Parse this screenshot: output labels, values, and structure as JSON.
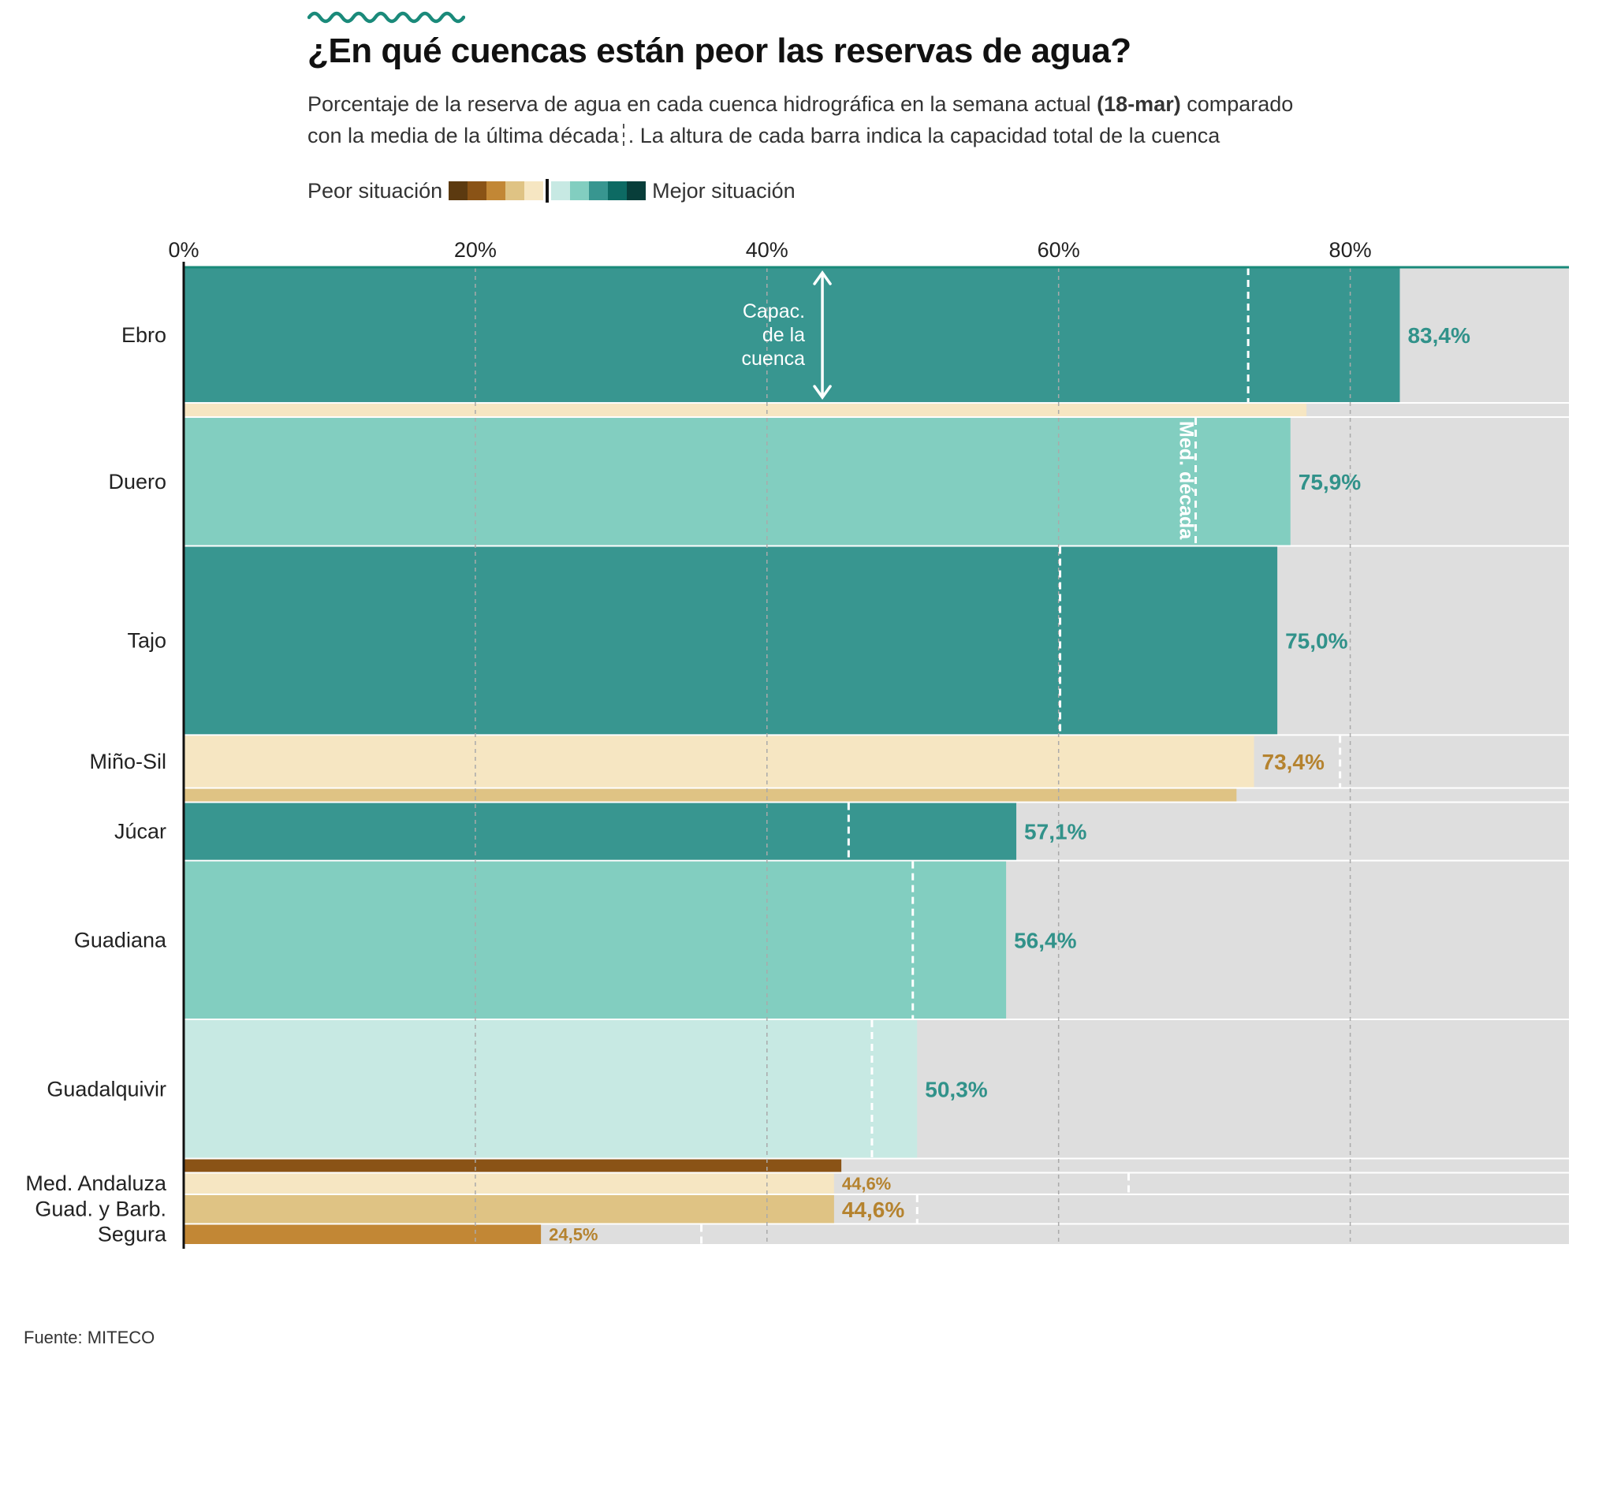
{
  "title": "¿En qué cuencas están peor las reservas de agua?",
  "subtitle_line1_before": "Porcentaje de la reserva de agua en cada cuenca hidrográfica en la semana actual",
  "subtitle_line1_bold": "(18-mar)",
  "subtitle_line1_after": "comparado",
  "subtitle_line2_before": "con la media de la última década",
  "subtitle_line2_after": ". La altura de cada barra indica la capacidad total de la cuenca",
  "legend": {
    "worse_label": "Peor situación",
    "better_label": "Mejor situación",
    "colors": [
      "#5c3a10",
      "#8a5316",
      "#c28735",
      "#dfc384",
      "#f6e6c2",
      "#c7e9e3",
      "#82cec0",
      "#389690",
      "#0d6a63",
      "#083e3a"
    ]
  },
  "annotations": {
    "capacity_label": [
      "Capac.",
      "de la",
      "cuenca"
    ],
    "decade_label": "Med. década"
  },
  "source": "Fuente: MITECO",
  "colors": {
    "background_bar": "#dedede",
    "accent": "#1a8a7a",
    "value_green": "#31928a",
    "value_brown": "#b5832f"
  },
  "chart_data": {
    "type": "bar",
    "orientation": "horizontal",
    "variable_height": true,
    "x_ticks": [
      "0%",
      "20%",
      "40%",
      "60%",
      "80%"
    ],
    "xlim": [
      0,
      95
    ],
    "categories": [
      "Ebro",
      "Duero",
      "Tajo",
      "Miño-Sil",
      "Júcar",
      "Guadiana",
      "Guadalquivir",
      "Med. Andaluza",
      "Guad. y Barb.",
      "Segura"
    ],
    "values": [
      83.4,
      75.9,
      75.0,
      73.4,
      57.1,
      56.4,
      50.3,
      44.6,
      44.6,
      24.5
    ],
    "value_labels": [
      "83,4%",
      "75,9%",
      "75,0%",
      "73,4%",
      "57,1%",
      "56,4%",
      "50,3%",
      "44,6%",
      "44,6%",
      "24,5%"
    ],
    "decade_average": [
      73.0,
      69.4,
      60.1,
      79.3,
      45.6,
      50.0,
      47.2,
      64.8,
      50.3,
      35.5
    ],
    "capacity_hm3": [
      7900,
      7500,
      11050,
      3030,
      3350,
      9260,
      8110,
      1180,
      1650,
      1140
    ],
    "bar_colors": [
      "#389690",
      "#82cec0",
      "#389690",
      "#f6e6c2",
      "#389690",
      "#82cec0",
      "#c7e9e3",
      "#f6e6c2",
      "#dfc384",
      "#c28735"
    ],
    "value_colors": [
      "#31928a",
      "#31928a",
      "#31928a",
      "#b5832f",
      "#31928a",
      "#31928a",
      "#31928a",
      "#b5832f",
      "#b5832f",
      "#b5832f"
    ],
    "extra_strips": [
      {
        "after_index": 0,
        "value": 77.0,
        "color": "#f6e6c2"
      },
      {
        "after_index": 3,
        "value": 72.2,
        "color": "#dfc384"
      },
      {
        "after_index": 6,
        "value": 45.1,
        "color": "#8a5316"
      }
    ]
  }
}
